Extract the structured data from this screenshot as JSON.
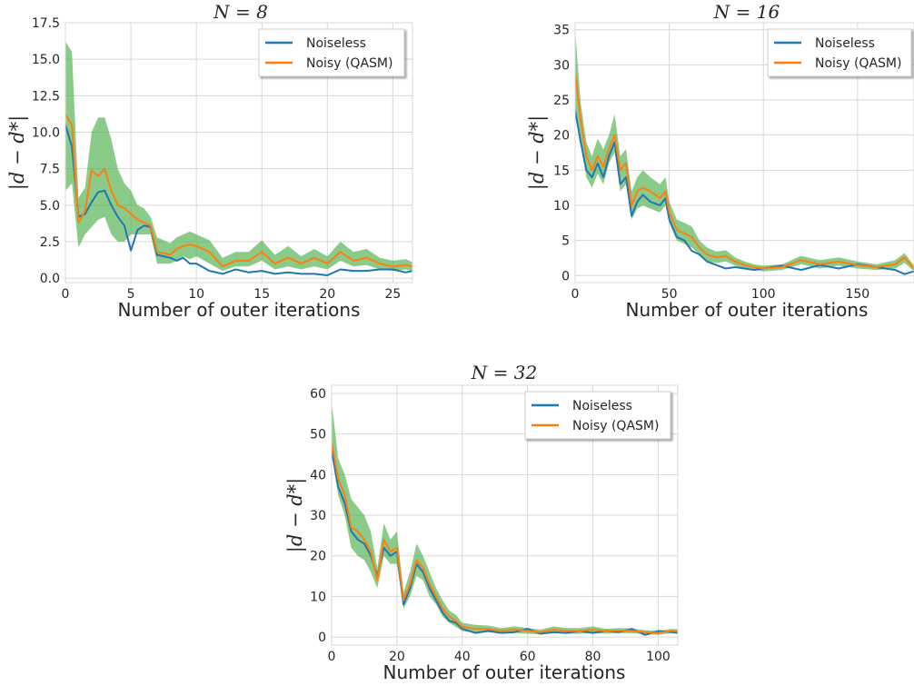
{
  "colors": {
    "noiseless": "#1f77b4",
    "noisy": "#ff7f0e",
    "band": "#4daf4a",
    "grid": "#d8d8d8"
  },
  "chart_data": [
    {
      "type": "line",
      "title": "N = 8",
      "xlabel": "Number of outer iterations",
      "ylabel": "|d − d*|",
      "xlim": [
        0,
        26.5
      ],
      "ylim": [
        -0.3,
        17.5
      ],
      "xticks": [
        "0",
        "5",
        "10",
        "15",
        "20",
        "25"
      ],
      "yticks": [
        "0.0",
        "2.5",
        "5.0",
        "7.5",
        "10.0",
        "12.5",
        "15.0",
        "17.5"
      ],
      "grid": true,
      "legend_position": "top-right",
      "legend": [
        "Noiseless",
        "Noisy (QASM)"
      ],
      "series": [
        {
          "name": "Noiseless",
          "x": [
            0,
            0.5,
            1,
            1.5,
            2,
            2.5,
            3,
            3.5,
            4,
            4.5,
            5,
            5.5,
            6,
            6.5,
            7,
            7.5,
            8,
            8.5,
            9,
            9.5,
            10,
            11,
            12,
            13,
            14,
            15,
            16,
            17,
            18,
            19,
            20,
            21,
            22,
            23,
            24,
            25,
            26,
            26.5
          ],
          "y": [
            10.5,
            9.0,
            4.2,
            4.4,
            5.2,
            5.9,
            6.0,
            5.0,
            4.2,
            3.6,
            1.9,
            3.3,
            3.6,
            3.5,
            1.6,
            1.5,
            1.4,
            1.2,
            1.4,
            1.0,
            1.0,
            0.5,
            0.3,
            0.6,
            0.4,
            0.5,
            0.3,
            0.4,
            0.3,
            0.3,
            0.2,
            0.6,
            0.5,
            0.5,
            0.6,
            0.6,
            0.4,
            0.5
          ]
        },
        {
          "name": "Noisy (QASM)",
          "x": [
            0,
            0.5,
            1,
            1.5,
            2,
            2.5,
            3,
            3.5,
            4,
            4.5,
            5,
            5.5,
            6,
            6.5,
            7,
            7.5,
            8,
            8.5,
            9,
            9.5,
            10,
            11,
            12,
            13,
            14,
            15,
            16,
            17,
            18,
            19,
            20,
            21,
            22,
            23,
            24,
            25,
            26,
            26.5
          ],
          "y": [
            11.2,
            10.5,
            3.8,
            4.6,
            7.4,
            7.0,
            7.5,
            6.0,
            5.0,
            4.8,
            4.4,
            4.0,
            3.8,
            3.6,
            1.8,
            1.7,
            1.6,
            2.0,
            2.2,
            2.3,
            2.2,
            1.8,
            0.8,
            1.2,
            1.2,
            1.8,
            1.0,
            1.4,
            1.0,
            1.4,
            1.0,
            1.8,
            1.2,
            1.4,
            1.0,
            0.8,
            0.9,
            0.8
          ]
        }
      ],
      "band": {
        "x": [
          0,
          0.5,
          1,
          1.5,
          2,
          2.5,
          3,
          3.5,
          4,
          4.5,
          5,
          5.5,
          6,
          6.5,
          7,
          7.5,
          8,
          8.5,
          9,
          9.5,
          10,
          11,
          12,
          13,
          14,
          15,
          16,
          17,
          18,
          19,
          20,
          21,
          22,
          23,
          24,
          25,
          26,
          26.5
        ],
        "lower": [
          6.0,
          6.5,
          2.1,
          3.0,
          3.5,
          4.0,
          4.2,
          3.0,
          2.5,
          2.5,
          3.0,
          3.0,
          3.0,
          3.0,
          1.0,
          1.0,
          1.0,
          1.2,
          1.5,
          1.3,
          1.5,
          1.0,
          0.5,
          0.8,
          0.8,
          1.2,
          0.6,
          0.8,
          0.6,
          0.8,
          0.6,
          1.2,
          0.8,
          0.9,
          0.6,
          0.5,
          0.6,
          0.5
        ],
        "upper": [
          16.2,
          15.5,
          5.5,
          6.2,
          10.0,
          11.0,
          11.0,
          9.5,
          7.5,
          6.5,
          6.0,
          5.0,
          4.8,
          4.2,
          2.8,
          2.6,
          2.4,
          2.8,
          3.0,
          3.2,
          3.0,
          2.6,
          1.4,
          1.8,
          1.8,
          2.6,
          1.6,
          2.2,
          1.5,
          2.0,
          1.5,
          2.5,
          1.8,
          2.0,
          1.4,
          1.2,
          1.3,
          1.1
        ]
      }
    },
    {
      "type": "line",
      "title": "N = 16",
      "xlabel": "Number of outer iterations",
      "ylabel": "|d − d*|",
      "xlim": [
        0,
        180
      ],
      "ylim": [
        -1,
        36
      ],
      "xticks": [
        "0",
        "50",
        "100",
        "150"
      ],
      "yticks": [
        "0",
        "5",
        "10",
        "15",
        "20",
        "25",
        "30",
        "35"
      ],
      "grid": true,
      "legend_position": "top-right",
      "legend": [
        "Noiseless",
        "Noisy (QASM)"
      ],
      "series": [
        {
          "name": "Noiseless",
          "x": [
            0,
            3,
            6,
            9,
            12,
            15,
            18,
            21,
            24,
            27,
            30,
            33,
            36,
            40,
            45,
            48,
            50,
            54,
            58,
            62,
            66,
            70,
            75,
            80,
            85,
            90,
            95,
            100,
            110,
            120,
            130,
            140,
            150,
            160,
            170,
            175,
            180
          ],
          "y": [
            23.5,
            19.0,
            15.0,
            14.0,
            16.0,
            14.0,
            17.0,
            19.0,
            13.0,
            14.0,
            8.5,
            10.5,
            11.5,
            10.5,
            10.0,
            11.0,
            8.0,
            5.5,
            5.0,
            3.5,
            3.0,
            2.0,
            1.5,
            1.0,
            1.2,
            1.0,
            0.8,
            1.0,
            1.4,
            0.8,
            1.5,
            1.0,
            1.6,
            1.2,
            0.8,
            0.2,
            0.6
          ]
        },
        {
          "name": "Noisy (QASM)",
          "x": [
            0,
            3,
            6,
            9,
            12,
            15,
            18,
            21,
            24,
            27,
            30,
            33,
            36,
            40,
            45,
            48,
            50,
            54,
            58,
            62,
            66,
            70,
            75,
            80,
            85,
            90,
            95,
            100,
            110,
            120,
            130,
            140,
            150,
            160,
            170,
            175,
            180
          ],
          "y": [
            29.0,
            22.0,
            17.0,
            15.0,
            17.0,
            15.5,
            18.0,
            20.0,
            15.0,
            16.0,
            10.0,
            12.0,
            12.5,
            12.0,
            11.0,
            12.0,
            9.0,
            6.5,
            6.0,
            5.5,
            4.0,
            3.0,
            2.6,
            2.8,
            2.0,
            1.5,
            1.2,
            1.0,
            1.2,
            2.2,
            1.6,
            2.0,
            1.5,
            1.2,
            1.6,
            2.6,
            1.0
          ]
        }
      ],
      "band": {
        "x": [
          0,
          3,
          6,
          9,
          12,
          15,
          18,
          21,
          24,
          27,
          30,
          33,
          36,
          40,
          45,
          48,
          50,
          54,
          58,
          62,
          66,
          70,
          75,
          80,
          85,
          90,
          95,
          100,
          110,
          120,
          130,
          140,
          150,
          160,
          170,
          175,
          180
        ],
        "lower": [
          24.0,
          18.5,
          14.0,
          12.5,
          14.5,
          13.0,
          16.0,
          17.5,
          12.0,
          13.0,
          8.0,
          9.5,
          10.0,
          9.5,
          9.0,
          10.0,
          7.5,
          5.0,
          4.5,
          4.0,
          3.0,
          2.0,
          1.8,
          2.0,
          1.4,
          1.0,
          0.8,
          0.6,
          0.8,
          1.6,
          1.0,
          1.4,
          1.0,
          0.8,
          1.0,
          1.8,
          0.6
        ],
        "upper": [
          35.0,
          24.5,
          19.0,
          17.0,
          19.5,
          18.0,
          20.0,
          23.0,
          17.0,
          18.0,
          12.0,
          14.0,
          15.0,
          14.0,
          13.0,
          14.0,
          10.5,
          8.0,
          7.5,
          7.0,
          5.0,
          4.0,
          3.4,
          3.6,
          2.6,
          2.0,
          1.6,
          1.4,
          1.6,
          2.8,
          2.2,
          2.6,
          2.0,
          1.6,
          2.2,
          3.2,
          1.4
        ]
      }
    },
    {
      "type": "line",
      "title": "N = 32",
      "xlabel": "Number of outer iterations",
      "ylabel": "|d − d*|",
      "xlim": [
        0,
        106
      ],
      "ylim": [
        -2,
        62
      ],
      "xticks": [
        "0",
        "20",
        "40",
        "60",
        "80",
        "100"
      ],
      "yticks": [
        "0",
        "10",
        "20",
        "30",
        "40",
        "50",
        "60"
      ],
      "grid": true,
      "legend_position": "top-right",
      "legend": [
        "Noiseless",
        "Noisy (QASM)"
      ],
      "series": [
        {
          "name": "Noiseless",
          "x": [
            0,
            2,
            4,
            6,
            8,
            10,
            12,
            14,
            16,
            18,
            20,
            22,
            24,
            26,
            28,
            30,
            32,
            34,
            36,
            38,
            40,
            44,
            48,
            52,
            56,
            60,
            64,
            68,
            72,
            76,
            80,
            84,
            88,
            92,
            96,
            100,
            104,
            106
          ],
          "y": [
            46,
            37,
            33,
            26,
            24,
            23,
            20,
            15,
            22,
            20,
            21,
            8,
            12,
            18,
            16,
            12,
            9,
            6,
            4,
            3.5,
            2,
            1,
            1.5,
            1,
            1.2,
            2,
            0.8,
            1.2,
            1,
            1.5,
            1,
            1.5,
            1.2,
            2,
            0.5,
            1.5,
            1.2,
            1
          ]
        },
        {
          "name": "Noisy (QASM)",
          "x": [
            0,
            2,
            4,
            6,
            8,
            10,
            12,
            14,
            16,
            18,
            20,
            22,
            24,
            26,
            28,
            30,
            32,
            34,
            36,
            38,
            40,
            44,
            48,
            52,
            56,
            60,
            64,
            68,
            72,
            76,
            80,
            84,
            88,
            92,
            96,
            100,
            104,
            106
          ],
          "y": [
            48,
            39,
            35,
            27,
            26,
            24,
            21,
            14,
            24,
            21,
            22,
            9,
            13,
            19,
            17,
            13,
            10,
            7,
            5,
            4,
            2.5,
            2,
            2,
            1.5,
            1.8,
            1.5,
            1.2,
            1.8,
            1.5,
            1.5,
            1.8,
            1.4,
            1.6,
            1.5,
            1.2,
            1,
            1.5,
            1.4
          ]
        }
      ],
      "band": {
        "x": [
          0,
          2,
          4,
          6,
          8,
          10,
          12,
          14,
          16,
          18,
          20,
          22,
          24,
          26,
          28,
          30,
          32,
          34,
          36,
          38,
          40,
          44,
          48,
          52,
          56,
          60,
          64,
          68,
          72,
          76,
          80,
          84,
          88,
          92,
          96,
          100,
          104,
          106
        ],
        "lower": [
          45,
          35,
          30,
          22,
          20,
          19,
          16,
          12,
          20,
          18,
          18,
          7,
          10,
          15,
          14,
          10,
          8,
          5,
          3.5,
          2.5,
          1.5,
          1,
          1.2,
          0.8,
          1,
          0.8,
          0.6,
          1,
          0.8,
          0.8,
          1,
          0.8,
          1,
          0.9,
          0.7,
          0.5,
          1,
          0.9
        ],
        "upper": [
          58,
          44,
          40,
          34,
          32,
          30,
          26,
          17,
          28,
          24,
          26,
          11,
          16,
          23,
          20,
          16,
          12,
          9,
          6.5,
          5.5,
          3.5,
          3,
          2.8,
          2.2,
          2.6,
          2.2,
          1.8,
          2.6,
          2.2,
          2.2,
          2.6,
          2,
          2.2,
          2.1,
          1.7,
          1.5,
          2,
          1.9
        ]
      }
    }
  ]
}
